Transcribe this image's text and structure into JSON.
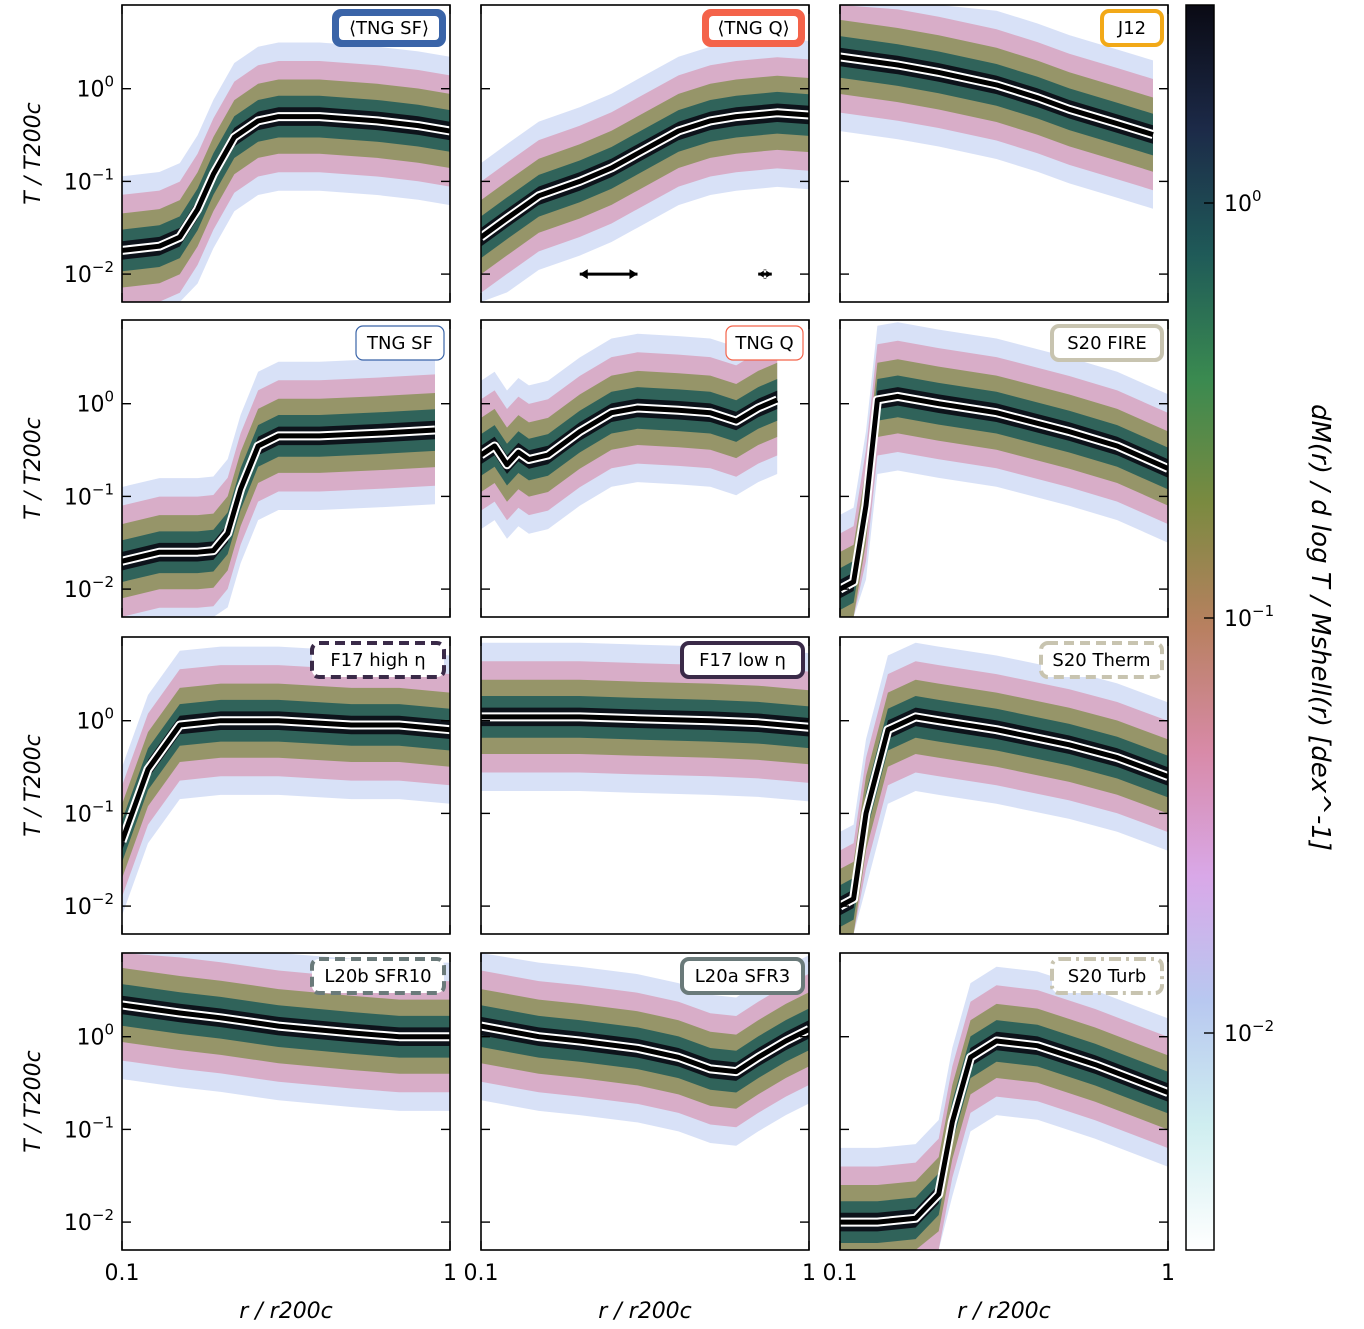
{
  "figure": {
    "xlabel": "r / r200c",
    "ylabel": "T / T200c",
    "x_scale": "log",
    "y_scale": "log",
    "xlim": [
      0.1,
      1
    ],
    "ylim": [
      0.005,
      8
    ],
    "x_ticks": [
      {
        "value": 0.1,
        "label": "0.1"
      },
      {
        "value": 1,
        "label": "1"
      }
    ],
    "y_ticks": [
      {
        "value": 1,
        "label": "10^0"
      },
      {
        "value": 0.1,
        "label": "10^-1"
      },
      {
        "value": 0.01,
        "label": "10^-2"
      }
    ],
    "colorbar": {
      "label": "dM(r) / d log T / Mshell(r) [dex^-1]",
      "scale": "log",
      "range": [
        0.003,
        3
      ],
      "ticks": [
        {
          "value": 1,
          "label": "10^0"
        },
        {
          "value": 0.1,
          "label": "10^-1"
        },
        {
          "value": 0.01,
          "label": "10^-2"
        }
      ],
      "colormap": [
        "#ffffff",
        "#cfeef0",
        "#b8c8f0",
        "#d9a8e8",
        "#d88aa8",
        "#b88060",
        "#7a8a40",
        "#3a8a50",
        "#1f5a58",
        "#1c2a48",
        "#0a0a14"
      ]
    }
  },
  "chart_data": [
    {
      "type": "heatmap",
      "panel": 1,
      "tag": "⟨TNG SF⟩",
      "tag_color": "#3a64a8",
      "tag_style": "solid-filled",
      "median_curve": {
        "x": [
          0.1,
          0.13,
          0.15,
          0.17,
          0.19,
          0.22,
          0.26,
          0.3,
          0.4,
          0.6,
          0.8,
          1.0
        ],
        "y": [
          0.018,
          0.02,
          0.025,
          0.05,
          0.12,
          0.3,
          0.45,
          0.5,
          0.5,
          0.45,
          0.4,
          0.35
        ]
      }
    },
    {
      "type": "heatmap",
      "panel": 2,
      "tag": "⟨TNG Q⟩",
      "tag_color": "#f4634a",
      "tag_style": "solid-filled",
      "median_curve": {
        "x": [
          0.1,
          0.12,
          0.15,
          0.2,
          0.25,
          0.3,
          0.4,
          0.5,
          0.6,
          0.8,
          1.0
        ],
        "y": [
          0.025,
          0.04,
          0.07,
          0.1,
          0.14,
          0.2,
          0.35,
          0.45,
          0.5,
          0.55,
          0.52
        ]
      },
      "arrows": [
        {
          "x": [
            0.2,
            0.3
          ],
          "y": 0.01
        },
        {
          "x": [
            0.7,
            0.77
          ],
          "y": 0.01
        }
      ]
    },
    {
      "type": "heatmap",
      "panel": 3,
      "tag": "J12",
      "tag_color": "#f2a918",
      "tag_style": "solid",
      "median_curve": {
        "x": [
          0.1,
          0.15,
          0.2,
          0.3,
          0.4,
          0.5,
          0.7,
          0.9
        ],
        "y": [
          2.2,
          1.8,
          1.5,
          1.1,
          0.8,
          0.6,
          0.42,
          0.32
        ]
      }
    },
    {
      "type": "heatmap",
      "panel": 4,
      "tag": "TNG SF",
      "tag_color": "#3a64a8",
      "tag_style": "thin",
      "median_curve": {
        "x": [
          0.1,
          0.13,
          0.17,
          0.19,
          0.21,
          0.23,
          0.26,
          0.3,
          0.4,
          0.6,
          0.9
        ],
        "y": [
          0.02,
          0.025,
          0.025,
          0.026,
          0.04,
          0.12,
          0.35,
          0.45,
          0.45,
          0.48,
          0.52
        ]
      }
    },
    {
      "type": "heatmap",
      "panel": 5,
      "tag": "TNG Q",
      "tag_color": "#f4634a",
      "tag_style": "thin",
      "median_curve": {
        "x": [
          0.1,
          0.11,
          0.12,
          0.13,
          0.14,
          0.16,
          0.2,
          0.25,
          0.3,
          0.4,
          0.5,
          0.6,
          0.7,
          0.8
        ],
        "y": [
          0.28,
          0.35,
          0.22,
          0.3,
          0.25,
          0.28,
          0.5,
          0.8,
          0.9,
          0.85,
          0.8,
          0.65,
          0.9,
          1.1
        ]
      }
    },
    {
      "type": "heatmap",
      "panel": 6,
      "tag": "S20 FIRE",
      "tag_color": "#c8c4b0",
      "tag_style": "solid",
      "median_curve": {
        "x": [
          0.1,
          0.11,
          0.12,
          0.13,
          0.15,
          0.2,
          0.3,
          0.5,
          0.7,
          1.0
        ],
        "y": [
          0.01,
          0.012,
          0.08,
          1.1,
          1.2,
          1.0,
          0.8,
          0.5,
          0.35,
          0.2
        ]
      }
    },
    {
      "type": "heatmap",
      "panel": 7,
      "tag": "F17 high η",
      "tag_color": "#3a2a48",
      "tag_style": "dashed",
      "median_curve": {
        "x": [
          0.1,
          0.12,
          0.15,
          0.2,
          0.3,
          0.5,
          0.7,
          1.0
        ],
        "y": [
          0.05,
          0.3,
          0.9,
          1.0,
          1.0,
          0.9,
          0.9,
          0.8
        ]
      }
    },
    {
      "type": "heatmap",
      "panel": 8,
      "tag": "F17 low η",
      "tag_color": "#3a2a48",
      "tag_style": "solid",
      "median_curve": {
        "x": [
          0.1,
          0.2,
          0.3,
          0.5,
          0.7,
          1.0
        ],
        "y": [
          1.1,
          1.1,
          1.05,
          1.0,
          0.95,
          0.85
        ]
      }
    },
    {
      "type": "heatmap",
      "panel": 9,
      "tag": "S20 Therm",
      "tag_color": "#c8c4b0",
      "tag_style": "dashed",
      "median_curve": {
        "x": [
          0.1,
          0.11,
          0.12,
          0.14,
          0.17,
          0.2,
          0.3,
          0.5,
          0.7,
          1.0
        ],
        "y": [
          0.01,
          0.012,
          0.1,
          0.8,
          1.1,
          1.0,
          0.8,
          0.55,
          0.4,
          0.25
        ]
      }
    },
    {
      "type": "heatmap",
      "panel": 10,
      "tag": "L20b SFR10",
      "tag_color": "#6a7a7a",
      "tag_style": "dashed",
      "median_curve": {
        "x": [
          0.1,
          0.15,
          0.2,
          0.3,
          0.5,
          0.7,
          1.0
        ],
        "y": [
          2.2,
          1.8,
          1.6,
          1.3,
          1.1,
          1.0,
          1.0
        ]
      }
    },
    {
      "type": "heatmap",
      "panel": 11,
      "tag": "L20a SFR3",
      "tag_color": "#6a7a7a",
      "tag_style": "solid",
      "median_curve": {
        "x": [
          0.1,
          0.15,
          0.2,
          0.3,
          0.4,
          0.5,
          0.6,
          0.7,
          0.85,
          1.0
        ],
        "y": [
          1.3,
          1.0,
          0.9,
          0.75,
          0.6,
          0.45,
          0.42,
          0.6,
          0.9,
          1.2
        ]
      }
    },
    {
      "type": "heatmap",
      "panel": 12,
      "tag": "S20 Turb",
      "tag_color": "#c8c4b0",
      "tag_style": "dashdot",
      "median_curve": {
        "x": [
          0.1,
          0.13,
          0.17,
          0.2,
          0.22,
          0.25,
          0.3,
          0.4,
          0.6,
          1.0
        ],
        "y": [
          0.01,
          0.01,
          0.011,
          0.02,
          0.12,
          0.6,
          0.9,
          0.8,
          0.5,
          0.25
        ]
      }
    }
  ]
}
